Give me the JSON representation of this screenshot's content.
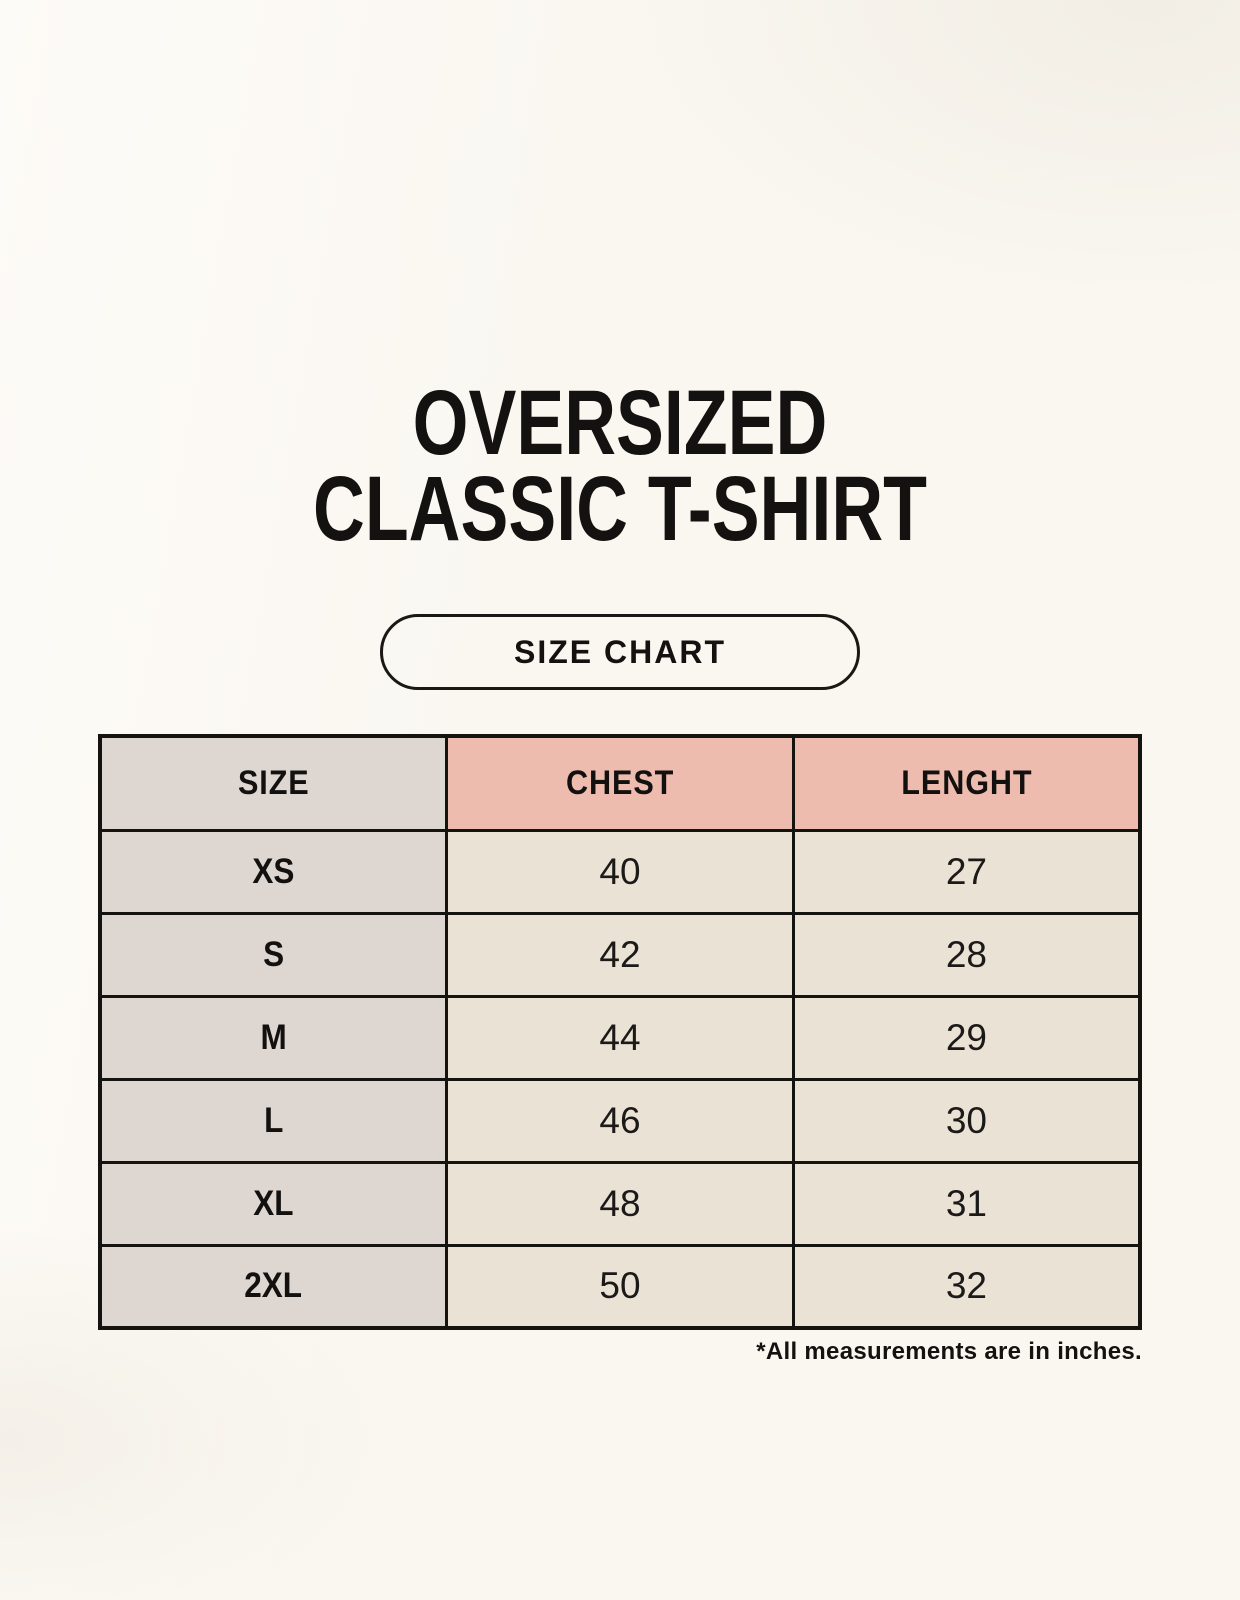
{
  "colors": {
    "background": "#faf7f1",
    "header_gray": "#ddd6d1",
    "header_pink": "#eebcae",
    "cell_cream": "#e9e2d5",
    "border_black": "#151310",
    "text_black": "#141210"
  },
  "title": {
    "line1": "OVERSIZED",
    "line2": "CLASSIC T-SHIRT"
  },
  "badge": {
    "label": "SIZE CHART"
  },
  "table": {
    "columns": [
      {
        "label": "SIZE"
      },
      {
        "label": "CHEST"
      },
      {
        "label": "LENGHT"
      }
    ],
    "rows": [
      {
        "size": "XS",
        "chest": "40",
        "length": "27"
      },
      {
        "size": "S",
        "chest": "42",
        "length": "28"
      },
      {
        "size": "M",
        "chest": "44",
        "length": "29"
      },
      {
        "size": "L",
        "chest": "46",
        "length": "30"
      },
      {
        "size": "XL",
        "chest": "48",
        "length": "31"
      },
      {
        "size": "2XL",
        "chest": "50",
        "length": "32"
      }
    ]
  },
  "footnote": "*All measurements are in inches.",
  "chart_data": {
    "type": "table",
    "title": "OVERSIZED CLASSIC T-SHIRT",
    "subtitle": "SIZE CHART",
    "columns": [
      "SIZE",
      "CHEST",
      "LENGHT"
    ],
    "rows": [
      [
        "XS",
        "40",
        "27"
      ],
      [
        "S",
        "42",
        "28"
      ],
      [
        "M",
        "44",
        "29"
      ],
      [
        "L",
        "46",
        "30"
      ],
      [
        "XL",
        "48",
        "31"
      ],
      [
        "2XL",
        "50",
        "32"
      ]
    ],
    "note": "*All measurements are in inches.",
    "units": "inches"
  }
}
